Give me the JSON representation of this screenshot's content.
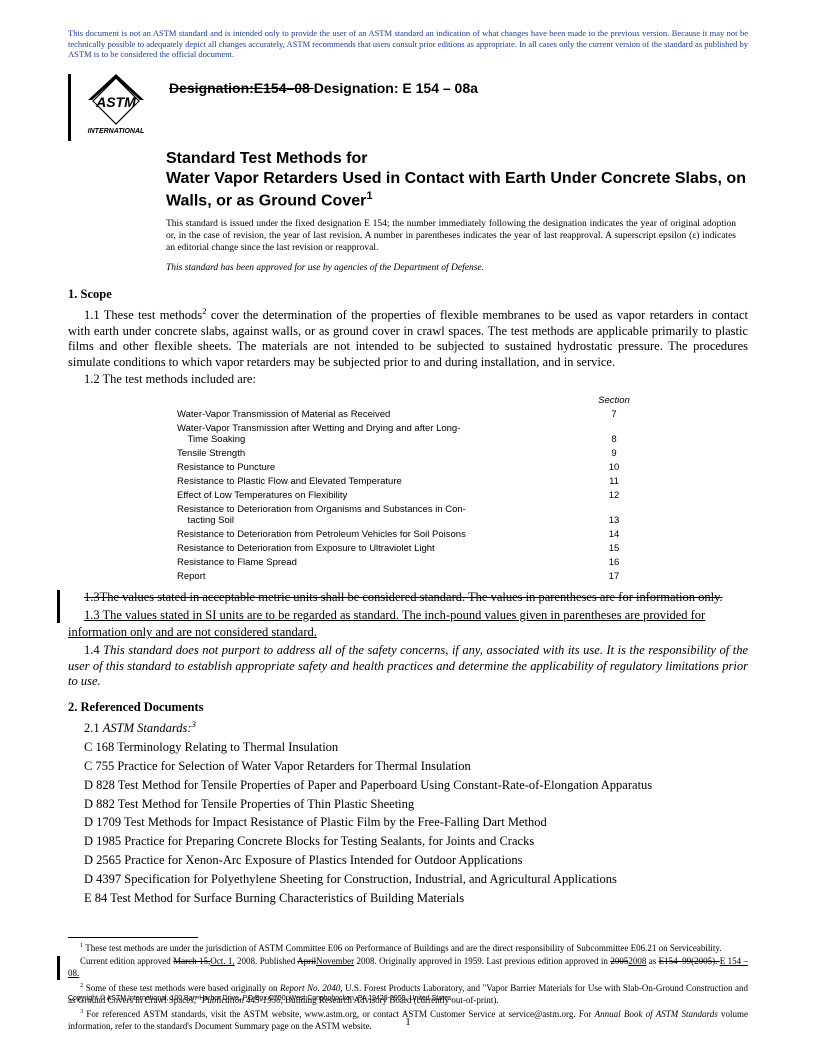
{
  "disclaimer": "This document is not an ASTM standard and is intended only to provide the user of an ASTM standard an indication of what changes have been made to the previous version. Because it may not be technically possible to adequately depict all changes accurately, ASTM recommends that users consult prior editions as appropriate. In all cases only the current version of the standard as published by ASTM is to be considered the official document.",
  "logo_text": "INTERNATIONAL",
  "designation_old": "Designation:E154–08 ",
  "designation_new": "Designation: E 154 – 08a",
  "title_line1": "Standard Test Methods for",
  "title_line2": "Water Vapor Retarders Used in Contact with Earth Under Concrete Slabs, on Walls, or as Ground Cover",
  "title_sup": "1",
  "issuance": "This standard is issued under the fixed designation E 154; the number immediately following the designation indicates the year of original adoption or, in the case of revision, the year of last revision. A number in parentheses indicates the year of last reapproval. A superscript epsilon (ε) indicates an editorial change since the last revision or reapproval.",
  "dod_approval": "This standard has been approved for use by agencies of the Department of Defense.",
  "scope_head": "1. Scope",
  "p11_a": "1.1 These test methods",
  "p11_sup": "2",
  "p11_b": " cover the determination of the properties of flexible membranes to be used as vapor retarders in contact with earth under concrete slabs, against walls, or as ground cover in crawl spaces. The test methods are applicable primarily to plastic films and other flexible sheets. The materials are not intended to be subjected to sustained hydrostatic pressure. The procedures simulate conditions to which vapor retarders may be subjected prior to and during installation, and in service.",
  "p12": "1.2 The test methods included are:",
  "tt_section_head": "Section",
  "tests": [
    {
      "label": "Water-Vapor Transmission of Material as Received",
      "section": "7"
    },
    {
      "label": "Water-Vapor Transmission after Wetting and Drying and after Long-Time Soaking",
      "section": "8",
      "wrap": true
    },
    {
      "label": "Tensile Strength",
      "section": "9"
    },
    {
      "label": "Resistance to Puncture",
      "section": "10"
    },
    {
      "label": "Resistance to Plastic Flow and Elevated Temperature",
      "section": "11"
    },
    {
      "label": "Effect of Low Temperatures on Flexibility",
      "section": "12"
    },
    {
      "label": "Resistance to Deterioration from Organisms and Substances in Contacting Soil",
      "section": "13",
      "wrap": true
    },
    {
      "label": "Resistance to Deterioration from Petroleum Vehicles for Soil Poisons",
      "section": "14"
    },
    {
      "label": "Resistance to Deterioration from Exposure to Ultraviolet Light",
      "section": "15"
    },
    {
      "label": "Resistance to Flame Spread",
      "section": "16"
    },
    {
      "label": "Report",
      "section": "17"
    }
  ],
  "p13_old": "1.3The values stated in acceptable metric units shall be considered standard. The values in parentheses are for information only.",
  "p13_new_a": "1.3 The values stated in SI units are to be regarded as standard. The inch-pound values given in parentheses are provided for",
  "p13_new_b": "information only and are not considered standard.",
  "p14": "1.4 This standard does not purport to address all of the safety concerns, if any, associated with its use. It is the responsibility of the user of this standard to establish appropriate safety and health practices and determine the applicability of regulatory limitations prior to use.",
  "refs_head": "2. Referenced Documents",
  "refs_21_a": "2.1 ",
  "refs_21_b": "ASTM Standards:",
  "refs_21_sup": "3",
  "refs": [
    "C 168  Terminology Relating to Thermal Insulation",
    "C 755  Practice for Selection of Water Vapor Retarders for Thermal Insulation",
    "D 828  Test Method for Tensile Properties of Paper and Paperboard Using Constant-Rate-of-Elongation Apparatus",
    "D 882  Test Method for Tensile Properties of Thin Plastic Sheeting",
    "D 1709  Test Methods for Impact Resistance of Plastic Film by the Free-Falling Dart Method",
    "D 1985  Practice for Preparing Concrete Blocks for Testing Sealants, for Joints and Cracks",
    "D 2565  Practice for Xenon-Arc Exposure of Plastics Intended for Outdoor Applications",
    "D 4397  Specification for Polyethylene Sheeting for Construction, Industrial, and Agricultural Applications",
    "E 84  Test Method for Surface Burning Characteristics of Building Materials"
  ],
  "fn1_a": " These test methods are under the jurisdiction of ASTM Committee E06 on Performance of Buildings and are the direct responsibility of Subcommittee E06.21 on Serviceability.",
  "fn1_b1": "Current edition approved ",
  "fn1_b2_strike": "March 15,",
  "fn1_b3": "Oct. 1,",
  "fn1_b4": " 2008. Published ",
  "fn1_b5_strike": "April",
  "fn1_b6": "November",
  "fn1_b7": " 2008. Originally approved in 1959. Last previous edition approved in ",
  "fn1_b8_strike": "2005",
  "fn1_b9": "2008",
  "fn1_b10": " as ",
  "fn1_b11_strike": "E154–99(2005). ",
  "fn1_b12": "E 154 – 08.",
  "fn2_a": " Some of these test methods were based originally on ",
  "fn2_b": "Report No. 2040",
  "fn2_c": ", U.S. Forest Products Laboratory, and \"Vapor Barrier Materials for Use with Slab-On-Ground Construction and as Ground Covers in Crawl Spaces,\" ",
  "fn2_d": "Publication 445-1956",
  "fn2_e": ", Building Research Advisory Board (currently out-of-print).",
  "fn3_a": " For referenced ASTM standards, visit the ASTM website, www.astm.org, or contact ASTM Customer Service at service@astm.org. For ",
  "fn3_b": "Annual Book of ASTM Standards",
  "fn3_c": " volume information, refer to the standard's Document Summary page on the ASTM website.",
  "copyright": "Copyright © ASTM International, 100 Barr Harbor Drive, PO Box C700, West Conshohocken, PA 19428-2959, United States.",
  "pagenum": "1"
}
